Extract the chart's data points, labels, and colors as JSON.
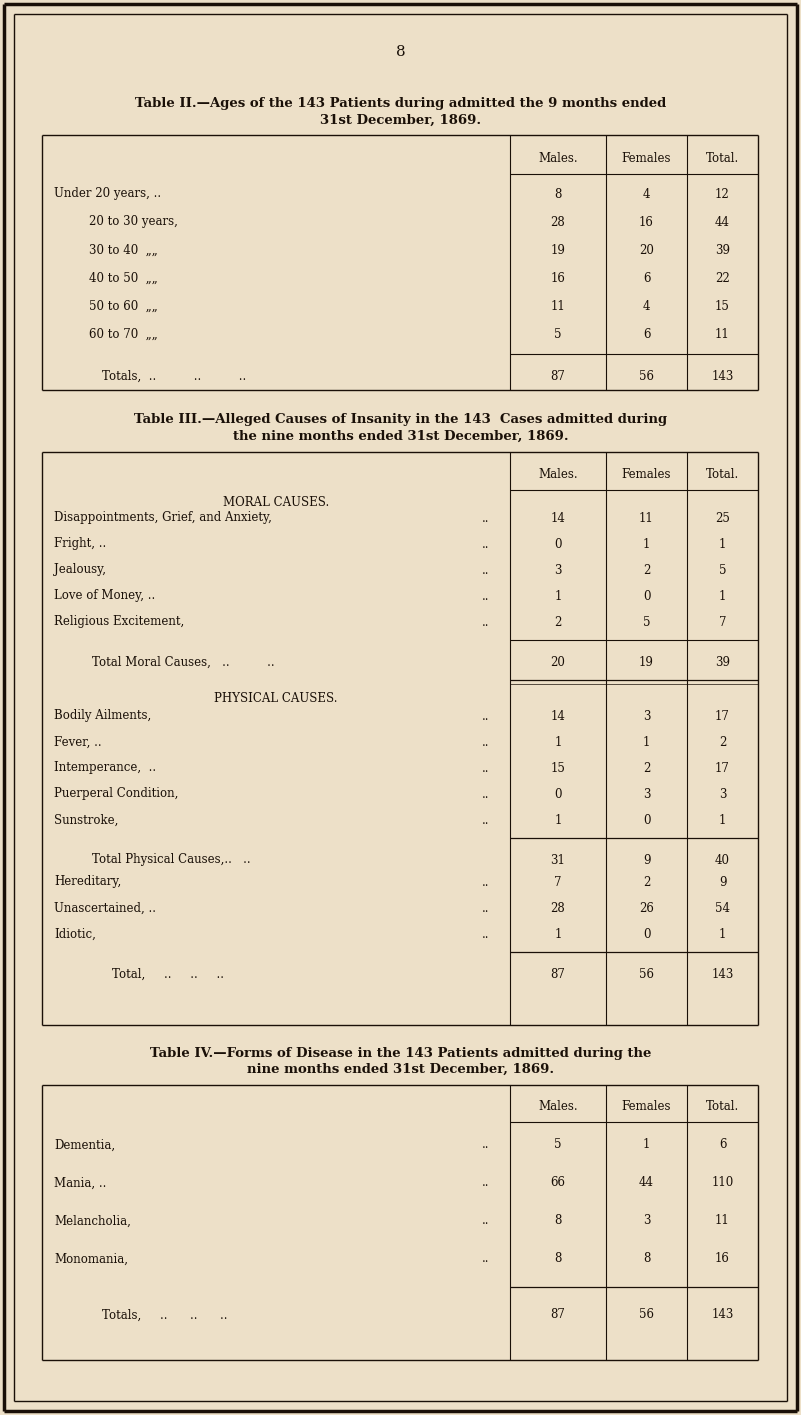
{
  "bg_color": "#ede0c8",
  "text_color": "#1a1008",
  "page_number": "8",
  "table2_title_line1": "Table II.—Ages of the 143 Patients during admitted the 9 months ended",
  "table2_title_line2": "31st December, 1869.",
  "table2_rows": [
    [
      "Under 20 years, ..",
      "8",
      "4",
      "12"
    ],
    [
      "20 to 30 years,",
      "28",
      "16",
      "44"
    ],
    [
      "30 to 40  „„",
      "19",
      "20",
      "39"
    ],
    [
      "40 to 50  „„",
      "16",
      "6",
      "22"
    ],
    [
      "50 to 60  „„",
      "11",
      "4",
      "15"
    ],
    [
      "60 to 70  „„",
      "5",
      "6",
      "11"
    ]
  ],
  "table2_total": [
    "Totals,",
    "87",
    "56",
    "143"
  ],
  "table3_title_line1": "Table III.—Alleged Causes of Insanity in the 143  Cases admitted during",
  "table3_title_line2": "the nine months ended 31st December, 1869.",
  "table3_moral_rows": [
    [
      "Disappointments, Grief, and Anxiety,",
      "..",
      "14",
      "11",
      "25"
    ],
    [
      "Fright, ..",
      "..",
      "0",
      "1",
      "1"
    ],
    [
      "Jealousy,",
      "..",
      "3",
      "2",
      "5"
    ],
    [
      "Love of Money, ..",
      "..",
      "1",
      "0",
      "1"
    ],
    [
      "Religious Excitement,",
      "..",
      "2",
      "5",
      "7"
    ]
  ],
  "table3_moral_total": [
    "Total Moral Causes,",
    "..",
    "20",
    "19",
    "39"
  ],
  "table3_physical_rows": [
    [
      "Bodily Ailments,",
      "..",
      "14",
      "3",
      "17"
    ],
    [
      "Fever, ..",
      "..",
      "1",
      "1",
      "2"
    ],
    [
      "Intemperance,  ..",
      "..",
      "15",
      "2",
      "17"
    ],
    [
      "Puerperal Condition,",
      "..",
      "0",
      "3",
      "3"
    ],
    [
      "Sunstroke,",
      "..",
      "1",
      "0",
      "1"
    ]
  ],
  "table3_physical_total": [
    "Total Physical Causes,..",
    "..",
    "31",
    "9",
    "40"
  ],
  "table3_other_rows": [
    [
      "Hereditary,",
      "..",
      "7",
      "2",
      "9"
    ],
    [
      "Unascertained, ..",
      "..",
      "28",
      "26",
      "54"
    ],
    [
      "Idiotic,",
      "..",
      "1",
      "0",
      "1"
    ]
  ],
  "table3_total": [
    "Total,",
    "..",
    "87",
    "56",
    "143"
  ],
  "table4_title_line1": "Table IV.—Forms of Disease in the 143 Patients admitted during the",
  "table4_title_line2": "nine months ended 31st December, 1869.",
  "table4_rows": [
    [
      "Dementia,",
      "..",
      "5",
      "1",
      "6"
    ],
    [
      "Mania, ..",
      "..",
      "66",
      "44",
      "110"
    ],
    [
      "Melancholia,",
      "..",
      "8",
      "3",
      "11"
    ],
    [
      "Monomania,",
      "..",
      "8",
      "8",
      "16"
    ]
  ],
  "table4_total": [
    "Totals,",
    "..",
    "87",
    "56",
    "143"
  ]
}
